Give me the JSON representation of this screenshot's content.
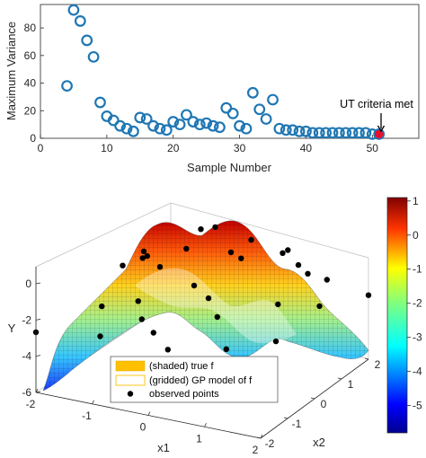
{
  "chart_data": [
    {
      "type": "scatter",
      "xlabel": "Sample Number",
      "ylabel": "Maximum Variance",
      "xlim": [
        0,
        57
      ],
      "ylim": [
        0,
        97
      ],
      "xticks": [
        0,
        10,
        20,
        30,
        40,
        50
      ],
      "yticks": [
        0,
        20,
        40,
        60,
        80
      ],
      "grid": false,
      "marker": "open-circle",
      "colors": {
        "markers": "#1f77b4",
        "highlight": "#e8112d"
      },
      "points": [
        {
          "x": 4,
          "y": 38
        },
        {
          "x": 5,
          "y": 93
        },
        {
          "x": 6,
          "y": 85
        },
        {
          "x": 7,
          "y": 71
        },
        {
          "x": 8,
          "y": 59
        },
        {
          "x": 9,
          "y": 26
        },
        {
          "x": 10,
          "y": 16
        },
        {
          "x": 11,
          "y": 13
        },
        {
          "x": 12,
          "y": 9
        },
        {
          "x": 13,
          "y": 7
        },
        {
          "x": 14,
          "y": 5
        },
        {
          "x": 15,
          "y": 15
        },
        {
          "x": 16,
          "y": 14
        },
        {
          "x": 17,
          "y": 9
        },
        {
          "x": 18,
          "y": 7
        },
        {
          "x": 19,
          "y": 6
        },
        {
          "x": 20,
          "y": 12
        },
        {
          "x": 21,
          "y": 10
        },
        {
          "x": 22,
          "y": 17
        },
        {
          "x": 23,
          "y": 12
        },
        {
          "x": 24,
          "y": 10
        },
        {
          "x": 25,
          "y": 11
        },
        {
          "x": 26,
          "y": 9
        },
        {
          "x": 27,
          "y": 8
        },
        {
          "x": 28,
          "y": 22
        },
        {
          "x": 29,
          "y": 18
        },
        {
          "x": 30,
          "y": 9
        },
        {
          "x": 31,
          "y": 7
        },
        {
          "x": 32,
          "y": 33
        },
        {
          "x": 33,
          "y": 21
        },
        {
          "x": 34,
          "y": 14
        },
        {
          "x": 35,
          "y": 28
        },
        {
          "x": 36,
          "y": 7
        },
        {
          "x": 37,
          "y": 6
        },
        {
          "x": 38,
          "y": 6
        },
        {
          "x": 39,
          "y": 5
        },
        {
          "x": 40,
          "y": 5
        },
        {
          "x": 41,
          "y": 4
        },
        {
          "x": 42,
          "y": 4
        },
        {
          "x": 43,
          "y": 4
        },
        {
          "x": 44,
          "y": 4
        },
        {
          "x": 45,
          "y": 4
        },
        {
          "x": 46,
          "y": 4
        },
        {
          "x": 47,
          "y": 4
        },
        {
          "x": 48,
          "y": 4
        },
        {
          "x": 49,
          "y": 4
        },
        {
          "x": 50,
          "y": 3
        },
        {
          "x": 51,
          "y": 3
        }
      ],
      "highlight_point": {
        "x": 51,
        "y": 3
      },
      "annotation": "UT criteria met"
    },
    {
      "type": "surface3d",
      "xlabel": "x1",
      "ylabel": "x2",
      "zlabel": "Y",
      "x1_ticks": [
        -2,
        -1,
        0,
        1,
        2
      ],
      "x2_ticks": [
        -2,
        -1,
        0,
        1,
        2
      ],
      "z_ticks": [
        -6,
        -4,
        -2,
        0
      ],
      "x1_range": [
        -2,
        2
      ],
      "x2_range": [
        -2,
        2
      ],
      "z_range": [
        -6,
        1
      ],
      "colorbar": {
        "ticks": [
          1,
          0,
          -1,
          -2,
          -3,
          -4,
          -5
        ],
        "range": [
          -5.8,
          1.1
        ],
        "colormap": "jet"
      },
      "legend": {
        "placement": "lower-left",
        "entries": [
          "(shaded) true f",
          "(gridded) GP model of f",
          "observed points"
        ]
      },
      "observed_points": [
        {
          "x1": -2.0,
          "x2": -2.0
        },
        {
          "x1": -2.0,
          "x2": 2.0
        },
        {
          "x1": 2.0,
          "x2": 2.0
        },
        {
          "x1": 2.0,
          "x2": -2.0
        },
        {
          "x1": -1.8,
          "x2": 0.8
        },
        {
          "x1": -1.5,
          "x2": -0.6
        },
        {
          "x1": -1.1,
          "x2": 1.7
        },
        {
          "x1": -1.0,
          "x2": -1.7
        },
        {
          "x1": -0.8,
          "x2": 0.1
        },
        {
          "x1": -0.5,
          "x2": -1.2
        },
        {
          "x1": -0.4,
          "x2": 1.9
        },
        {
          "x1": -0.2,
          "x2": 0.9
        },
        {
          "x1": 0.0,
          "x2": -0.3
        },
        {
          "x1": 0.2,
          "x2": 1.4
        },
        {
          "x1": 0.3,
          "x2": -1.9
        },
        {
          "x1": 0.5,
          "x2": 0.4
        },
        {
          "x1": 0.7,
          "x2": -0.9
        },
        {
          "x1": 0.8,
          "x2": 1.9
        },
        {
          "x1": 1.0,
          "x2": 0.9
        },
        {
          "x1": 1.1,
          "x2": -1.4
        },
        {
          "x1": 1.3,
          "x2": 0.1
        },
        {
          "x1": 1.5,
          "x2": 1.5
        },
        {
          "x1": 1.6,
          "x2": -0.6
        },
        {
          "x1": 1.8,
          "x2": 0.6
        },
        {
          "x1": 1.9,
          "x2": -1.7
        },
        {
          "x1": -1.3,
          "x2": 0.5
        },
        {
          "x1": -0.6,
          "x2": 1.2
        },
        {
          "x1": 0.4,
          "x2": -0.6
        },
        {
          "x1": -1.7,
          "x2": 1.5
        },
        {
          "x1": 0.9,
          "x2": 1.3
        },
        {
          "x1": -0.1,
          "x2": -1.6
        },
        {
          "x1": 1.4,
          "x2": 1.0
        },
        {
          "x1": -0.9,
          "x2": -0.5
        }
      ]
    }
  ]
}
